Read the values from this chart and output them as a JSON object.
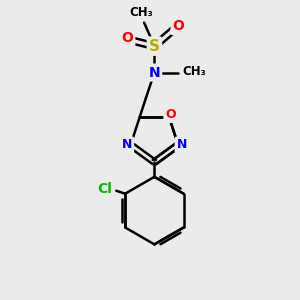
{
  "bg_color": "#ebebeb",
  "bond_color": "#000000",
  "bond_width": 1.8,
  "atom_colors": {
    "N": "#0000ff",
    "O": "#ff0000",
    "S": "#bbaa00",
    "Cl": "#00bb00",
    "C": "#000000"
  },
  "font_size_atom": 10,
  "font_size_methyl": 8.5
}
